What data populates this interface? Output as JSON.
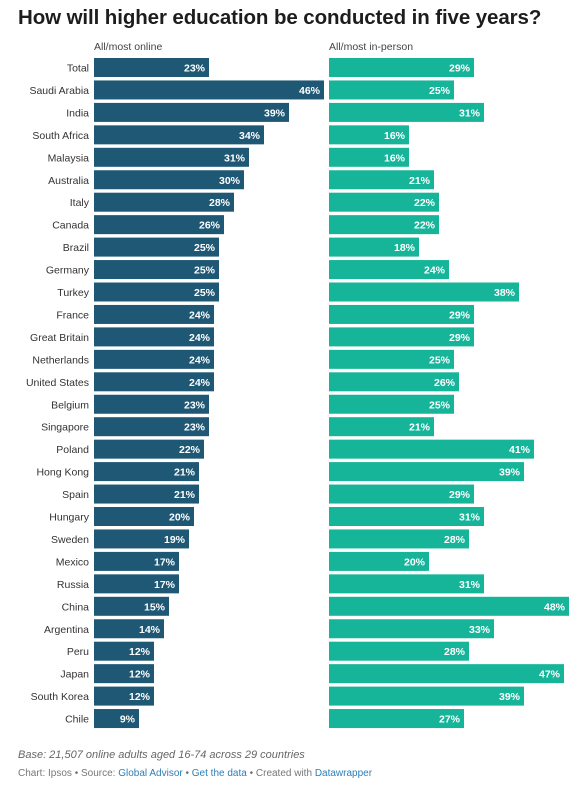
{
  "title": "How will higher education be conducted in five years?",
  "colors": {
    "online": "#1e5874",
    "inperson": "#16b59a"
  },
  "chart_data": {
    "type": "bar",
    "orientation": "horizontal",
    "categories": [
      "Total",
      "Saudi Arabia",
      "India",
      "South Africa",
      "Malaysia",
      "Australia",
      "Italy",
      "Canada",
      "Brazil",
      "Germany",
      "Turkey",
      "France",
      "Great Britain",
      "Netherlands",
      "United States",
      "Belgium",
      "Singapore",
      "Poland",
      "Hong Kong",
      "Spain",
      "Hungary",
      "Sweden",
      "Mexico",
      "Russia",
      "China",
      "Argentina",
      "Peru",
      "Japan",
      "South Korea",
      "Chile"
    ],
    "series": [
      {
        "name": "All/most online",
        "values": [
          23,
          46,
          39,
          34,
          31,
          30,
          28,
          26,
          25,
          25,
          25,
          24,
          24,
          24,
          24,
          23,
          23,
          22,
          21,
          21,
          20,
          19,
          17,
          17,
          15,
          14,
          12,
          12,
          12,
          9
        ]
      },
      {
        "name": "All/most in-person",
        "values": [
          29,
          25,
          31,
          16,
          16,
          21,
          22,
          22,
          18,
          24,
          38,
          29,
          29,
          25,
          26,
          25,
          21,
          41,
          39,
          29,
          31,
          28,
          20,
          31,
          48,
          33,
          28,
          47,
          39,
          27
        ]
      }
    ],
    "value_suffix": "%",
    "xlim": [
      0,
      48
    ]
  },
  "footer": {
    "note": "Base: 21,507 online adults aged 16-74 across 29 countries",
    "chart_by": "Chart: Ipsos",
    "sep1": " • Source: ",
    "source_link": "Global Advisor",
    "sep2": " • ",
    "data_link": "Get the data",
    "sep3": " • Created with ",
    "tool_link": "Datawrapper"
  }
}
